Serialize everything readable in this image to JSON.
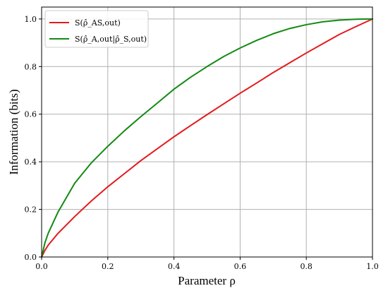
{
  "chart_data": {
    "type": "line",
    "xlabel": "Parameter ρ",
    "ylabel": "Information (bits)",
    "xlim": [
      0,
      1
    ],
    "ylim": [
      0,
      1.05
    ],
    "x_ticks": [
      "0.0",
      "0.2",
      "0.4",
      "0.6",
      "0.8",
      "1.0"
    ],
    "y_ticks": [
      "0.0",
      "0.2",
      "0.4",
      "0.6",
      "0.8",
      "1.0"
    ],
    "grid": true,
    "legend_position": "top-left",
    "series": [
      {
        "name": "S(ρ̂_AS,out)",
        "color": "#e41a1c",
        "x": [
          0.0,
          0.01,
          0.02,
          0.05,
          0.1,
          0.15,
          0.2,
          0.25,
          0.3,
          0.35,
          0.4,
          0.45,
          0.5,
          0.55,
          0.6,
          0.65,
          0.7,
          0.75,
          0.8,
          0.85,
          0.9,
          0.95,
          1.0
        ],
        "values": [
          0.0,
          0.028,
          0.05,
          0.1,
          0.17,
          0.235,
          0.295,
          0.35,
          0.405,
          0.455,
          0.505,
          0.552,
          0.598,
          0.643,
          0.688,
          0.731,
          0.775,
          0.816,
          0.857,
          0.896,
          0.935,
          0.968,
          1.0
        ]
      },
      {
        "name": "S(ρ̂_A,out|ρ̂_S,out)",
        "color": "#138a13",
        "x": [
          0.0,
          0.01,
          0.02,
          0.05,
          0.1,
          0.15,
          0.2,
          0.25,
          0.3,
          0.35,
          0.4,
          0.45,
          0.5,
          0.55,
          0.6,
          0.65,
          0.7,
          0.75,
          0.8,
          0.85,
          0.9,
          0.95,
          1.0
        ],
        "values": [
          0.0,
          0.06,
          0.1,
          0.19,
          0.31,
          0.395,
          0.465,
          0.53,
          0.59,
          0.647,
          0.705,
          0.755,
          0.8,
          0.842,
          0.878,
          0.91,
          0.938,
          0.96,
          0.976,
          0.988,
          0.995,
          0.999,
          1.0
        ]
      }
    ]
  }
}
